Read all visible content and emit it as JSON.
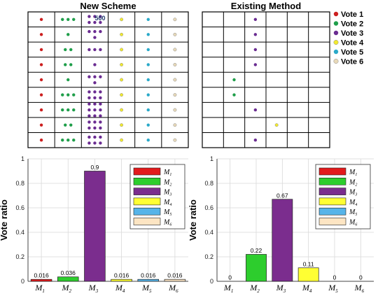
{
  "figure": {
    "vote_legend": {
      "entries": [
        {
          "label": "Vote 1",
          "color": "#cc1f1f"
        },
        {
          "label": "Vote 2",
          "color": "#1f9e4a"
        },
        {
          "label": "Vote 3",
          "color": "#6a2c91"
        },
        {
          "label": "Vote 4",
          "color": "#f2ea2e"
        },
        {
          "label": "Vote 5",
          "color": "#2aa9c9"
        },
        {
          "label": "Vote 6",
          "color": "#e8d9b8"
        }
      ]
    }
  },
  "chart_data": [
    {
      "type": "table",
      "title": "New Scheme",
      "rows": 9,
      "cols": 6,
      "dot_counts": [
        [
          1,
          3,
          6,
          1,
          1,
          1
        ],
        [
          1,
          1,
          4,
          1,
          1,
          1
        ],
        [
          1,
          2,
          3,
          1,
          1,
          1
        ],
        [
          1,
          2,
          1,
          1,
          1,
          1
        ],
        [
          1,
          1,
          4,
          1,
          1,
          1
        ],
        [
          1,
          3,
          6,
          1,
          1,
          1
        ],
        [
          1,
          3,
          9,
          1,
          1,
          1
        ],
        [
          1,
          2,
          6,
          1,
          1,
          1
        ],
        [
          1,
          3,
          6,
          1,
          1,
          1
        ]
      ],
      "annotation": {
        "text": "500",
        "row": 0,
        "col": 2
      }
    },
    {
      "type": "table",
      "title": "Existing Method",
      "rows": 9,
      "cols": 6,
      "dots": [
        {
          "row": 0,
          "col": 2,
          "vote": 3
        },
        {
          "row": 1,
          "col": 2,
          "vote": 3
        },
        {
          "row": 2,
          "col": 2,
          "vote": 3
        },
        {
          "row": 3,
          "col": 2,
          "vote": 3
        },
        {
          "row": 4,
          "col": 1,
          "vote": 2
        },
        {
          "row": 5,
          "col": 1,
          "vote": 2
        },
        {
          "row": 6,
          "col": 2,
          "vote": 3
        },
        {
          "row": 7,
          "col": 3,
          "vote": 4
        },
        {
          "row": 8,
          "col": 2,
          "vote": 3
        }
      ]
    },
    {
      "type": "bar",
      "title": "",
      "xlabel": "",
      "ylabel": "Vote ratio",
      "ylim": [
        0,
        1
      ],
      "yticks": [
        "0",
        "0.2",
        "0.4",
        "0.6",
        "0.8",
        "1"
      ],
      "grid": true,
      "legend_position": "top-right",
      "categories": [
        "M1",
        "M2",
        "M3",
        "M4",
        "M5",
        "M6"
      ],
      "values": [
        0.016,
        0.036,
        0.9,
        0.016,
        0.016,
        0.016
      ],
      "labels": [
        "0.016",
        "0.036",
        "0.9",
        "0.016",
        "0.016",
        "0.016"
      ],
      "colors": [
        "#e31a1c",
        "#2dcd2d",
        "#7b2d8e",
        "#ffff33",
        "#56b4e9",
        "#fde5c3"
      ]
    },
    {
      "type": "bar",
      "title": "",
      "xlabel": "",
      "ylabel": "Vote ratio",
      "ylim": [
        0,
        1
      ],
      "yticks": [
        "0",
        "0.2",
        "0.4",
        "0.6",
        "0.8",
        "1"
      ],
      "grid": true,
      "legend_position": "top-right",
      "categories": [
        "M1",
        "M2",
        "M3",
        "M4",
        "M5",
        "M6"
      ],
      "values": [
        0,
        0.22,
        0.67,
        0.11,
        0,
        0
      ],
      "labels": [
        "0",
        "0.22",
        "0.67",
        "0.11",
        "0",
        "0"
      ],
      "colors": [
        "#e31a1c",
        "#2dcd2d",
        "#7b2d8e",
        "#ffff33",
        "#56b4e9",
        "#fde5c3"
      ]
    }
  ]
}
